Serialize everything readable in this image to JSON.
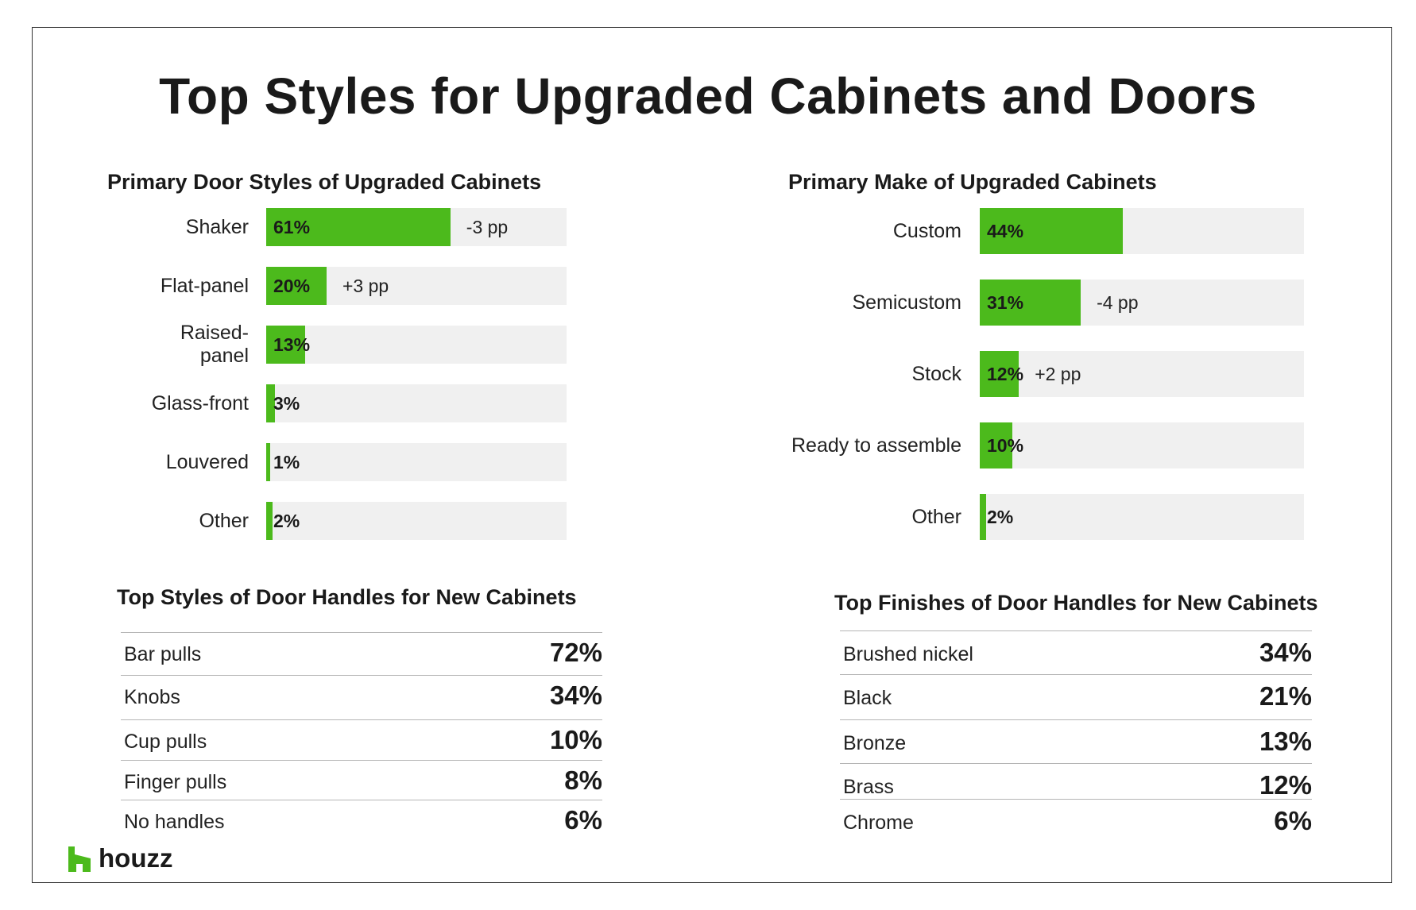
{
  "title": "Top Styles for Upgraded Cabinets and Doors",
  "logo_text": "houzz",
  "colors": {
    "bar": "#4cba1c",
    "track": "#f0f0f0",
    "text": "#1a1a1a",
    "rule": "#b5b5b5"
  },
  "chart_data": [
    {
      "type": "bar",
      "orientation": "horizontal",
      "title": "Primary Door Styles of Upgraded Cabinets",
      "categories": [
        "Shaker",
        "Flat-panel",
        "Raised-panel",
        "Glass-front",
        "Louvered",
        "Other"
      ],
      "category_labels": [
        [
          "Shaker"
        ],
        [
          "Flat-panel"
        ],
        [
          "Raised-",
          "panel"
        ],
        [
          "Glass-front"
        ],
        [
          "Louvered"
        ],
        [
          "Other"
        ]
      ],
      "values": [
        61,
        20,
        13,
        3,
        1,
        2
      ],
      "value_labels": [
        "61%",
        "20%",
        "13%",
        "3%",
        "1%",
        "2%"
      ],
      "change_labels": [
        "-3 pp",
        "+3 pp",
        "",
        "",
        "",
        ""
      ],
      "xlim": [
        0,
        100
      ]
    },
    {
      "type": "bar",
      "orientation": "horizontal",
      "title": "Primary Make of Upgraded Cabinets",
      "categories": [
        "Custom",
        "Semicustom",
        "Stock",
        "Ready to assemble",
        "Other"
      ],
      "category_labels": [
        [
          "Custom"
        ],
        [
          "Semicustom"
        ],
        [
          "Stock"
        ],
        [
          "Ready to assemble"
        ],
        [
          "Other"
        ]
      ],
      "values": [
        44,
        31,
        12,
        10,
        2
      ],
      "value_labels": [
        "44%",
        "31%",
        "12%",
        "10%",
        "2%"
      ],
      "change_labels": [
        "",
        "-4 pp",
        "+2 pp",
        "",
        ""
      ],
      "xlim": [
        0,
        100
      ]
    },
    {
      "type": "table",
      "title": "Top Styles of Door Handles for New Cabinets",
      "rows": [
        {
          "label": "Bar pulls",
          "value": "72%"
        },
        {
          "label": "Knobs",
          "value": "34%"
        },
        {
          "label": "Cup pulls",
          "value": "10%"
        },
        {
          "label": "Finger pulls",
          "value": "8%"
        },
        {
          "label": "No handles",
          "value": "6%"
        }
      ]
    },
    {
      "type": "table",
      "title": "Top Finishes of Door Handles for New Cabinets",
      "rows": [
        {
          "label": "Brushed nickel",
          "value": "34%"
        },
        {
          "label": "Black",
          "value": "21%"
        },
        {
          "label": "Bronze",
          "value": "13%"
        },
        {
          "label": "Brass",
          "value": "12%"
        },
        {
          "label": "Chrome",
          "value": "6%"
        }
      ]
    }
  ]
}
